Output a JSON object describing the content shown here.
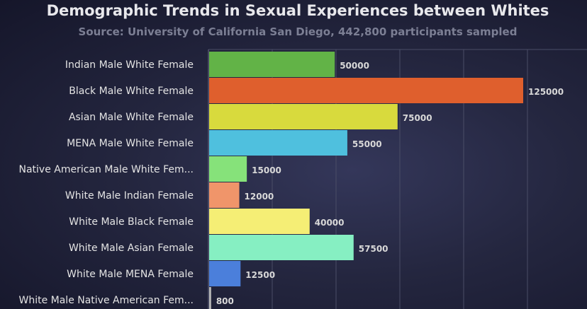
{
  "chart_data": {
    "type": "bar",
    "orientation": "horizontal",
    "title": "Demographic Trends in Sexual Experiences between Whites",
    "subtitle": "Source: University of California San Diego, 442,800 participants sampled",
    "categories": [
      "Indian Male White Female",
      "Black Male White Female",
      "Asian Male White Female",
      "MENA Male White Female",
      "Native American Male White Fem...",
      "White Male Indian Female",
      "White Male Black Female",
      "White Male Asian Female",
      "White Male MENA Female",
      "White Male Native American Fem..."
    ],
    "values": [
      50000,
      125000,
      75000,
      55000,
      15000,
      12000,
      40000,
      57500,
      12500,
      800
    ],
    "value_labels": [
      "50000",
      "125000",
      "75000",
      "55000",
      "15000",
      "12000",
      "40000",
      "57500",
      "12500",
      "800"
    ],
    "colors": [
      "#62b347",
      "#df5f2d",
      "#d8da3d",
      "#4fc0de",
      "#86e27a",
      "#f0956a",
      "#f5ee75",
      "#86efc2",
      "#4b7fdb",
      "#b8b8b8"
    ],
    "xlim": [
      0,
      125000
    ],
    "grid": true,
    "legend": "none"
  }
}
